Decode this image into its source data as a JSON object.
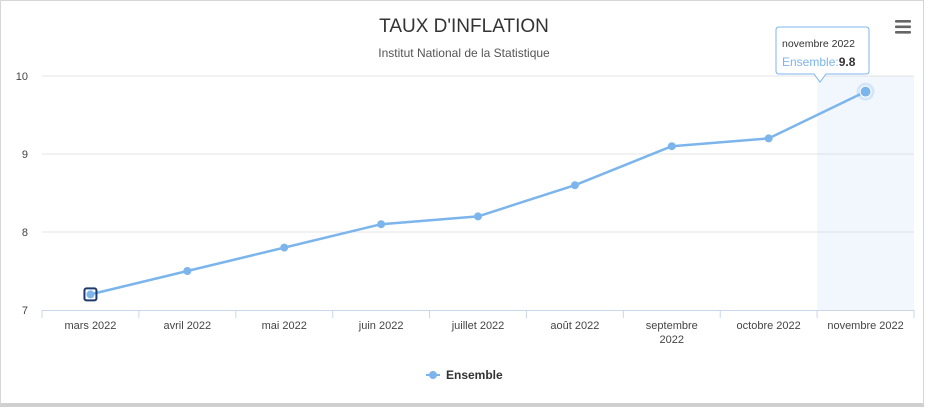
{
  "chart_data": {
    "type": "line",
    "title": "TAUX D'INFLATION",
    "subtitle": "Institut National de la Statistique",
    "categories": [
      "mars 2022",
      "avril 2022",
      "mai 2022",
      "juin 2022",
      "juillet 2022",
      "août 2022",
      "septembre 2022",
      "octobre 2022",
      "novembre 2022"
    ],
    "series": [
      {
        "name": "Ensemble",
        "values": [
          7.2,
          7.5,
          7.8,
          8.1,
          8.2,
          8.6,
          9.1,
          9.2,
          9.8
        ]
      }
    ],
    "ylim": [
      7,
      10
    ],
    "yticks": [
      7,
      8,
      9,
      10
    ],
    "grid": true,
    "legend_placement": "bottom-center",
    "series_color": "#7cb5ec",
    "tooltip": {
      "category": "novembre 2022",
      "series": "Ensemble",
      "value": "9.8"
    }
  },
  "menu": {
    "icon": "hamburger-menu-icon"
  }
}
